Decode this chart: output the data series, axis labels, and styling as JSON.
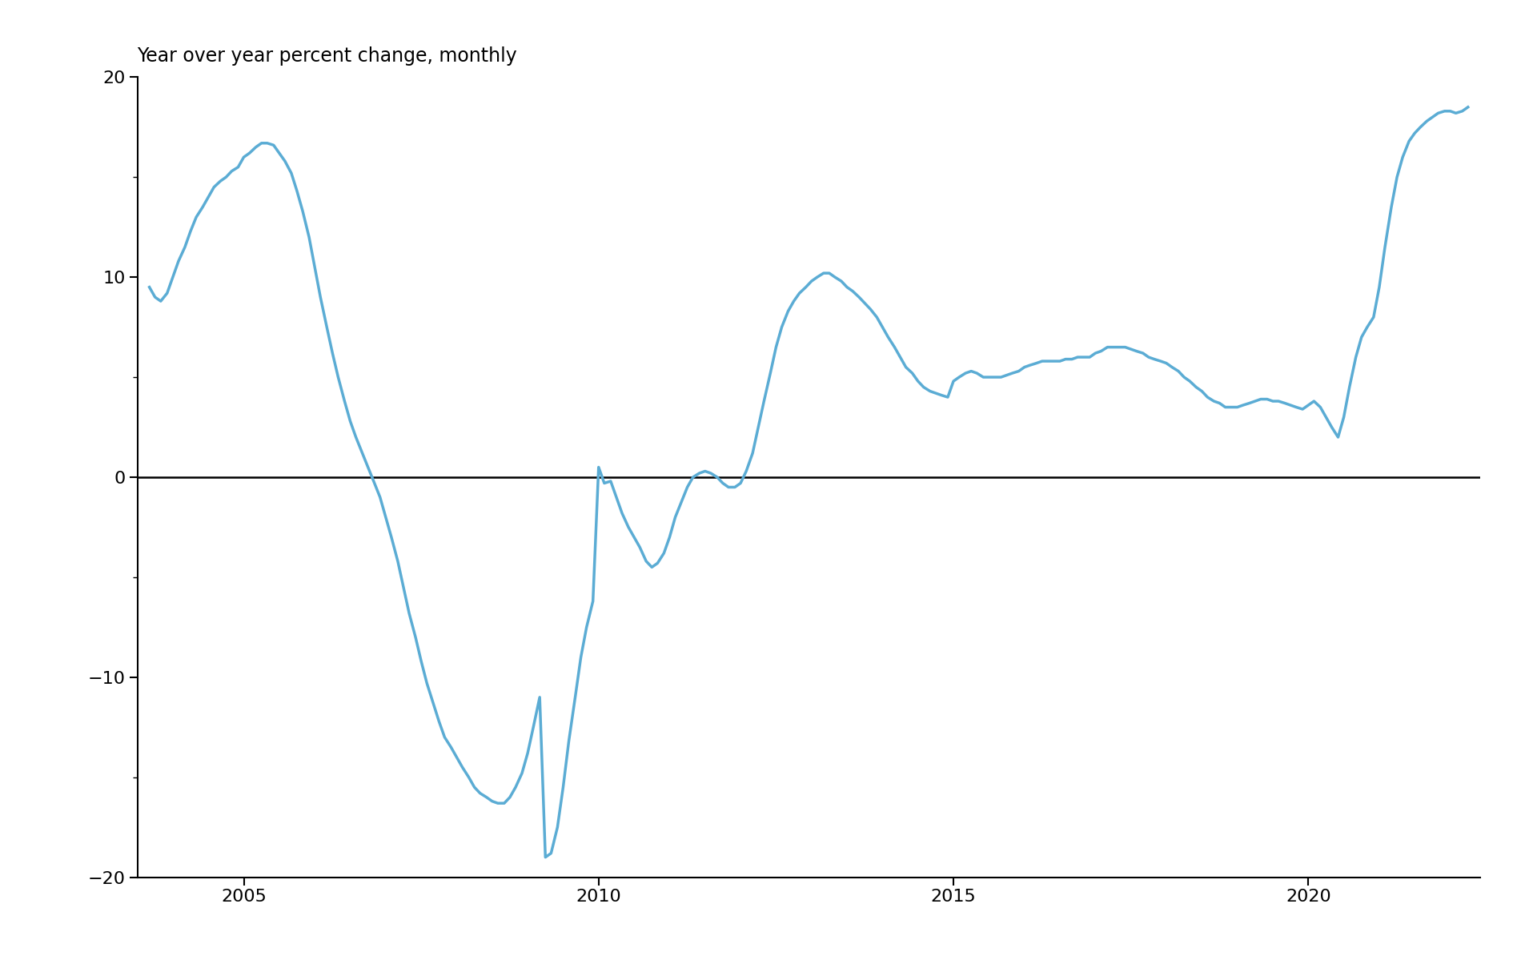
{
  "title": "Year over year percent change, monthly",
  "line_color": "#5bacd4",
  "zero_line_color": "#000000",
  "background_color": "#ffffff",
  "ylim": [
    -20,
    20
  ],
  "yticks": [
    -20,
    -10,
    0,
    10,
    20
  ],
  "xlim_start": 2003.5,
  "xlim_end": 2022.42,
  "xticks": [
    2005,
    2010,
    2015,
    2020
  ],
  "title_fontsize": 17,
  "tick_fontsize": 16,
  "line_width": 2.5,
  "dates": [
    2003.67,
    2003.75,
    2003.83,
    2003.92,
    2004.0,
    2004.08,
    2004.17,
    2004.25,
    2004.33,
    2004.42,
    2004.5,
    2004.58,
    2004.67,
    2004.75,
    2004.83,
    2004.92,
    2005.0,
    2005.08,
    2005.17,
    2005.25,
    2005.33,
    2005.42,
    2005.5,
    2005.58,
    2005.67,
    2005.75,
    2005.83,
    2005.92,
    2006.0,
    2006.08,
    2006.17,
    2006.25,
    2006.33,
    2006.42,
    2006.5,
    2006.58,
    2006.67,
    2006.75,
    2006.83,
    2006.92,
    2007.0,
    2007.08,
    2007.17,
    2007.25,
    2007.33,
    2007.42,
    2007.5,
    2007.58,
    2007.67,
    2007.75,
    2007.83,
    2007.92,
    2008.0,
    2008.08,
    2008.17,
    2008.25,
    2008.33,
    2008.42,
    2008.5,
    2008.58,
    2008.67,
    2008.75,
    2008.83,
    2008.92,
    2009.0,
    2009.08,
    2009.17,
    2009.25,
    2009.33,
    2009.42,
    2009.5,
    2009.58,
    2009.67,
    2009.75,
    2009.83,
    2009.92,
    2010.0,
    2010.08,
    2010.17,
    2010.25,
    2010.33,
    2010.42,
    2010.5,
    2010.58,
    2010.67,
    2010.75,
    2010.83,
    2010.92,
    2011.0,
    2011.08,
    2011.17,
    2011.25,
    2011.33,
    2011.42,
    2011.5,
    2011.58,
    2011.67,
    2011.75,
    2011.83,
    2011.92,
    2012.0,
    2012.08,
    2012.17,
    2012.25,
    2012.33,
    2012.42,
    2012.5,
    2012.58,
    2012.67,
    2012.75,
    2012.83,
    2012.92,
    2013.0,
    2013.08,
    2013.17,
    2013.25,
    2013.33,
    2013.42,
    2013.5,
    2013.58,
    2013.67,
    2013.75,
    2013.83,
    2013.92,
    2014.0,
    2014.08,
    2014.17,
    2014.25,
    2014.33,
    2014.42,
    2014.5,
    2014.58,
    2014.67,
    2014.75,
    2014.83,
    2014.92,
    2015.0,
    2015.08,
    2015.17,
    2015.25,
    2015.33,
    2015.42,
    2015.5,
    2015.58,
    2015.67,
    2015.75,
    2015.83,
    2015.92,
    2016.0,
    2016.08,
    2016.17,
    2016.25,
    2016.33,
    2016.42,
    2016.5,
    2016.58,
    2016.67,
    2016.75,
    2016.83,
    2016.92,
    2017.0,
    2017.08,
    2017.17,
    2017.25,
    2017.33,
    2017.42,
    2017.5,
    2017.58,
    2017.67,
    2017.75,
    2017.83,
    2017.92,
    2018.0,
    2018.08,
    2018.17,
    2018.25,
    2018.33,
    2018.42,
    2018.5,
    2018.58,
    2018.67,
    2018.75,
    2018.83,
    2018.92,
    2019.0,
    2019.08,
    2019.17,
    2019.25,
    2019.33,
    2019.42,
    2019.5,
    2019.58,
    2019.67,
    2019.75,
    2019.83,
    2019.92,
    2020.0,
    2020.08,
    2020.17,
    2020.25,
    2020.33,
    2020.42,
    2020.5,
    2020.58,
    2020.67,
    2020.75,
    2020.83,
    2020.92,
    2021.0,
    2021.08,
    2021.17,
    2021.25,
    2021.33,
    2021.42,
    2021.5,
    2021.58,
    2021.67,
    2021.75,
    2021.83,
    2021.92,
    2022.0,
    2022.08,
    2022.17,
    2022.25
  ],
  "values": [
    9.5,
    9.0,
    8.8,
    9.2,
    10.0,
    10.8,
    11.5,
    12.3,
    13.0,
    13.5,
    14.0,
    14.5,
    14.8,
    15.0,
    15.3,
    15.5,
    16.0,
    16.2,
    16.5,
    16.7,
    16.7,
    16.6,
    16.2,
    15.8,
    15.2,
    14.3,
    13.3,
    12.0,
    10.5,
    9.0,
    7.5,
    6.2,
    5.0,
    3.8,
    2.8,
    2.0,
    1.2,
    0.5,
    -0.2,
    -1.0,
    -2.0,
    -3.0,
    -4.2,
    -5.5,
    -6.8,
    -8.0,
    -9.2,
    -10.3,
    -11.3,
    -12.2,
    -13.0,
    -13.5,
    -14.0,
    -14.5,
    -15.0,
    -15.5,
    -15.8,
    -16.0,
    -16.2,
    -16.3,
    -16.3,
    -16.0,
    -15.5,
    -14.8,
    -13.8,
    -12.5,
    -11.0,
    -19.0,
    -18.8,
    -17.5,
    -15.5,
    -13.2,
    -11.0,
    -9.0,
    -7.5,
    -6.2,
    0.5,
    -0.3,
    -0.2,
    -1.0,
    -1.8,
    -2.5,
    -3.0,
    -3.5,
    -4.2,
    -4.5,
    -4.3,
    -3.8,
    -3.0,
    -2.0,
    -1.2,
    -0.5,
    0.0,
    0.2,
    0.3,
    0.2,
    0.0,
    -0.3,
    -0.5,
    -0.5,
    -0.3,
    0.3,
    1.2,
    2.5,
    3.8,
    5.2,
    6.5,
    7.5,
    8.3,
    8.8,
    9.2,
    9.5,
    9.8,
    10.0,
    10.2,
    10.2,
    10.0,
    9.8,
    9.5,
    9.3,
    9.0,
    8.7,
    8.4,
    8.0,
    7.5,
    7.0,
    6.5,
    6.0,
    5.5,
    5.2,
    4.8,
    4.5,
    4.3,
    4.2,
    4.1,
    4.0,
    4.8,
    5.0,
    5.2,
    5.3,
    5.2,
    5.0,
    5.0,
    5.0,
    5.0,
    5.1,
    5.2,
    5.3,
    5.5,
    5.6,
    5.7,
    5.8,
    5.8,
    5.8,
    5.8,
    5.9,
    5.9,
    6.0,
    6.0,
    6.0,
    6.2,
    6.3,
    6.5,
    6.5,
    6.5,
    6.5,
    6.4,
    6.3,
    6.2,
    6.0,
    5.9,
    5.8,
    5.7,
    5.5,
    5.3,
    5.0,
    4.8,
    4.5,
    4.3,
    4.0,
    3.8,
    3.7,
    3.5,
    3.5,
    3.5,
    3.6,
    3.7,
    3.8,
    3.9,
    3.9,
    3.8,
    3.8,
    3.7,
    3.6,
    3.5,
    3.4,
    3.6,
    3.8,
    3.5,
    3.0,
    2.5,
    2.0,
    3.0,
    4.5,
    6.0,
    7.0,
    7.5,
    8.0,
    9.5,
    11.5,
    13.5,
    15.0,
    16.0,
    16.8,
    17.2,
    17.5,
    17.8,
    18.0,
    18.2,
    18.3,
    18.3,
    18.2,
    18.3,
    18.5
  ]
}
